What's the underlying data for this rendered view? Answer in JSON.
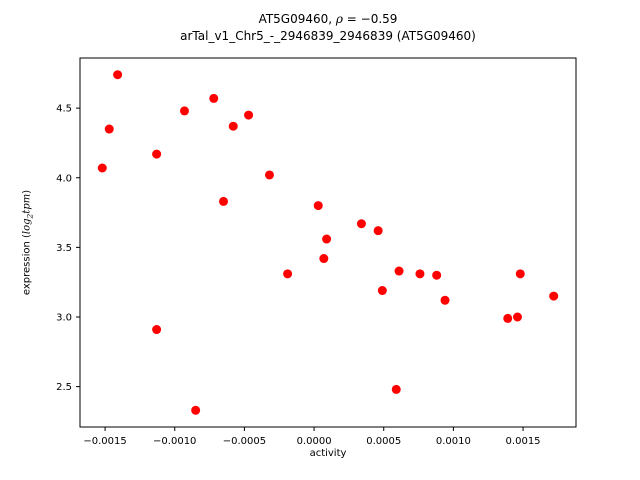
{
  "chart_data": {
    "type": "scatter",
    "title_parts": {
      "prefix": "AT5G09460, ",
      "rho": "ρ",
      "suffix": " = −0.59"
    },
    "title": "AT5G09460, ρ = −0.59",
    "subtitle": "arTal_v1_Chr5_-_2946839_2946839 (AT5G09460)",
    "xlabel": "activity",
    "ylabel_parts": {
      "prefix": "expression (",
      "math_main": "log",
      "math_sub": "2",
      "math_rest": "tpm",
      "suffix": ")"
    },
    "marker_color": "#ff0000",
    "xlim": [
      -0.00168,
      0.00188
    ],
    "ylim": [
      2.21,
      4.86
    ],
    "x_ticks": {
      "values": [
        -0.0015,
        -0.001,
        -0.0005,
        0.0,
        0.0005,
        0.001,
        0.0015
      ],
      "labels": [
        "−0.0015",
        "−0.0010",
        "−0.0005",
        "0.0000",
        "0.0005",
        "0.0010",
        "0.0015"
      ]
    },
    "y_ticks": {
      "values": [
        2.5,
        3.0,
        3.5,
        4.0,
        4.5
      ],
      "labels": [
        "2.5",
        "3.0",
        "3.5",
        "4.0",
        "4.5"
      ]
    },
    "grid": false,
    "legend": "none",
    "series": [
      {
        "name": "expression vs activity",
        "points": [
          [
            -0.00152,
            4.07
          ],
          [
            -0.00147,
            4.35
          ],
          [
            -0.00141,
            4.74
          ],
          [
            -0.00113,
            4.17
          ],
          [
            -0.00113,
            2.91
          ],
          [
            -0.00093,
            4.48
          ],
          [
            -0.00085,
            2.33
          ],
          [
            -0.00072,
            4.57
          ],
          [
            -0.00065,
            3.83
          ],
          [
            -0.00058,
            4.37
          ],
          [
            -0.00047,
            4.45
          ],
          [
            -0.00032,
            4.02
          ],
          [
            -0.00019,
            3.31
          ],
          [
            3e-05,
            3.8
          ],
          [
            7e-05,
            3.42
          ],
          [
            9e-05,
            3.56
          ],
          [
            0.00034,
            3.67
          ],
          [
            0.00046,
            3.62
          ],
          [
            0.00049,
            3.19
          ],
          [
            0.00059,
            2.48
          ],
          [
            0.00061,
            3.33
          ],
          [
            0.00076,
            3.31
          ],
          [
            0.00088,
            3.3
          ],
          [
            0.00094,
            3.12
          ],
          [
            0.00139,
            2.99
          ],
          [
            0.00146,
            3.0
          ],
          [
            0.00148,
            3.31
          ],
          [
            0.00172,
            3.15
          ]
        ]
      }
    ]
  }
}
